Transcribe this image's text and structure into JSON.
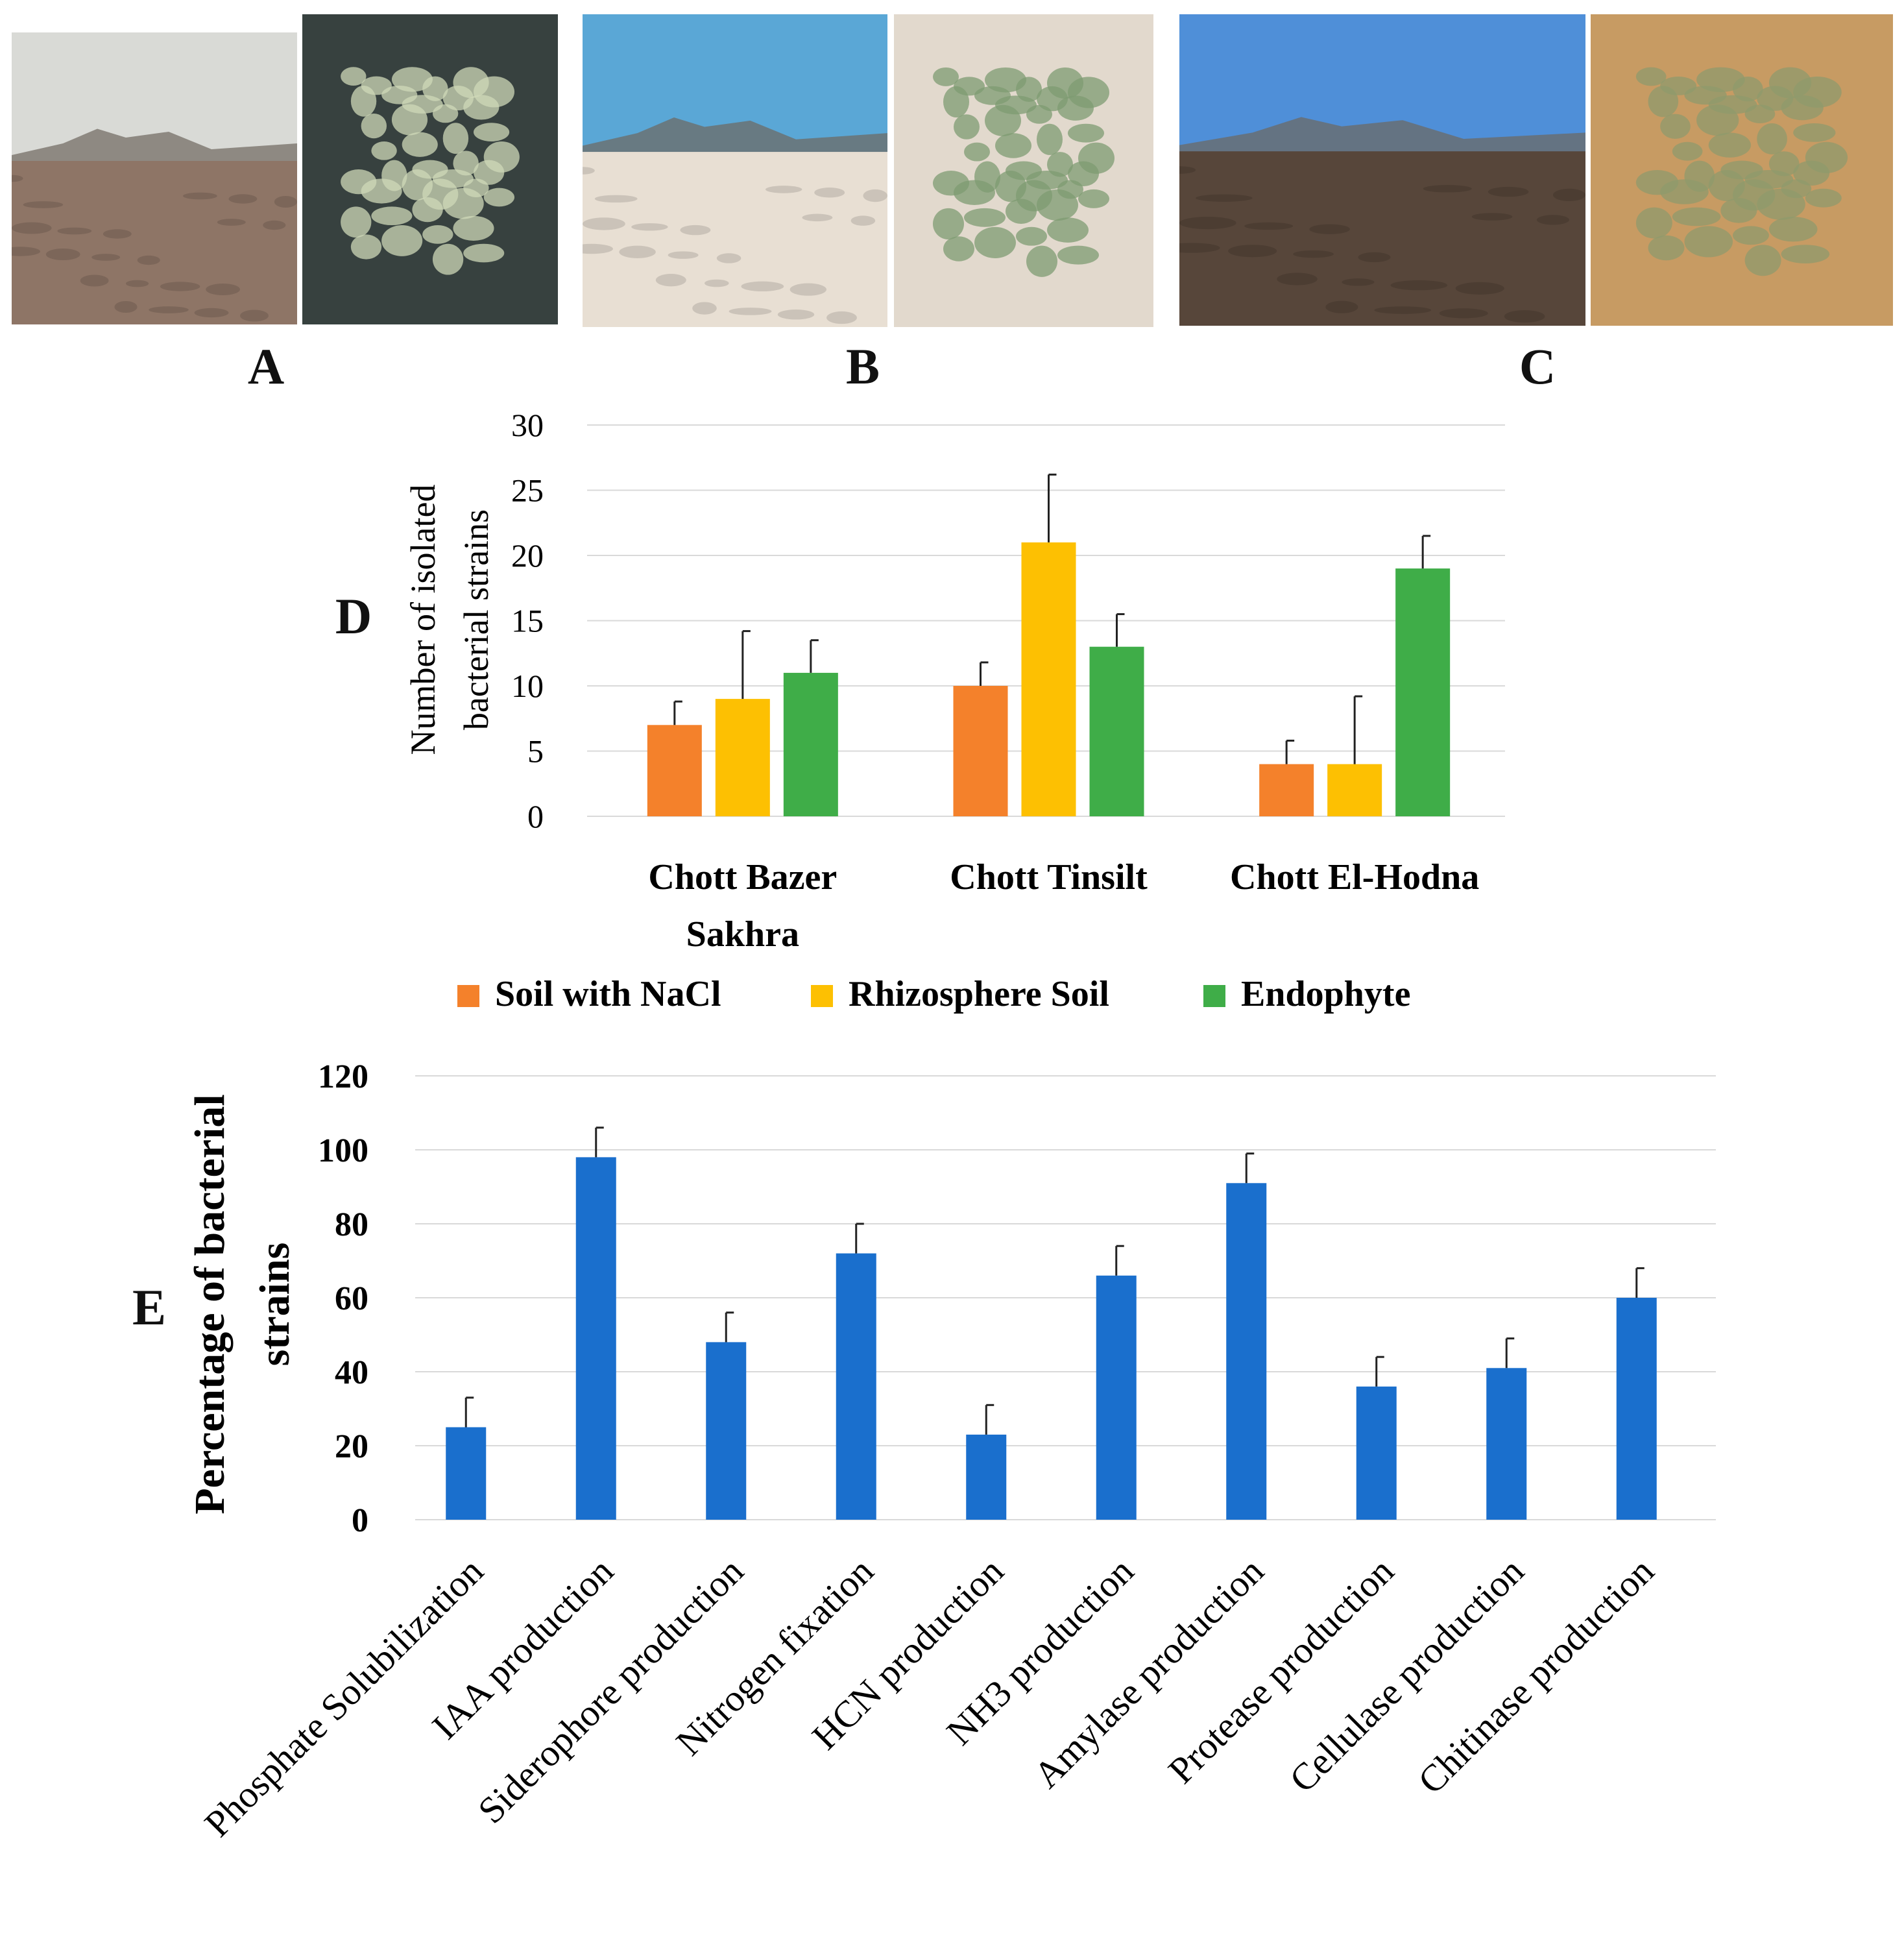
{
  "photos": [
    {
      "id": "A-landscape",
      "panel": "A",
      "kind": "landscape",
      "sky": "#d9dad6",
      "ground": "#8e7566"
    },
    {
      "id": "A-plant",
      "panel": "A",
      "kind": "plant",
      "bg": "#37413f",
      "leaf": "#cfd8b8"
    },
    {
      "id": "B-landscape",
      "panel": "B",
      "kind": "landscape",
      "sky": "#5aa7d6",
      "ground": "#e8dfd3"
    },
    {
      "id": "B-plant",
      "panel": "B",
      "kind": "plant",
      "bg": "#e2d9cd",
      "leaf": "#7d9b71"
    },
    {
      "id": "C-landscape",
      "panel": "C",
      "kind": "landscape",
      "sky": "#4f8fd8",
      "ground": "#57463a"
    },
    {
      "id": "C-plant",
      "panel": "C",
      "kind": "plant",
      "bg": "#c79b63",
      "leaf": "#8f9a6c"
    }
  ],
  "panel_labels": {
    "a": "A",
    "b": "B",
    "c": "C",
    "d": "D",
    "e": "E"
  },
  "colors": {
    "soil": "#f4812b",
    "rhizo": "#fdc002",
    "endo": "#3fad48",
    "blue": "#1a6fcd",
    "grid": "#d9d9d9"
  },
  "chart_data": [
    {
      "id": "D",
      "type": "bar",
      "ylabel": [
        "Number of isolated",
        "bacterial strains"
      ],
      "ylim": [
        0,
        30
      ],
      "yticks": [
        "0",
        "5",
        "10",
        "15",
        "20",
        "25",
        "30"
      ],
      "categories": [
        [
          "Chott Bazer",
          "Sakhra"
        ],
        [
          "Chott Tinsilt"
        ],
        [
          "Chott El-Hodna"
        ]
      ],
      "series": [
        {
          "name": "Soil with NaCl",
          "values": [
            7,
            10,
            4
          ],
          "errors": [
            1.8,
            1.8,
            1.8
          ]
        },
        {
          "name": "Rhizosphere Soil",
          "values": [
            9,
            21,
            4
          ],
          "errors": [
            5.2,
            5.2,
            5.2
          ]
        },
        {
          "name": "Endophyte",
          "values": [
            11,
            13,
            19
          ],
          "errors": [
            2.5,
            2.5,
            2.5
          ]
        }
      ],
      "legend": "bottom"
    },
    {
      "id": "E",
      "type": "bar",
      "ylabel": [
        "Percentage of bacterial",
        "strains"
      ],
      "ylim": [
        0,
        120
      ],
      "yticks": [
        "0",
        "20",
        "40",
        "60",
        "80",
        "100",
        "120"
      ],
      "categories": [
        "Phosphate Solubilization",
        "IAA production",
        "Siderophore production",
        "Nitrogen fixation",
        "HCN production",
        "NH3 production",
        "Amylase production",
        "Protease production",
        "Cellulase production",
        "Chitinase production"
      ],
      "values": [
        25,
        98,
        48,
        72,
        23,
        66,
        91,
        36,
        41,
        60
      ],
      "errors": [
        8,
        8,
        8,
        8,
        8,
        8,
        8,
        8,
        8,
        8
      ]
    }
  ]
}
